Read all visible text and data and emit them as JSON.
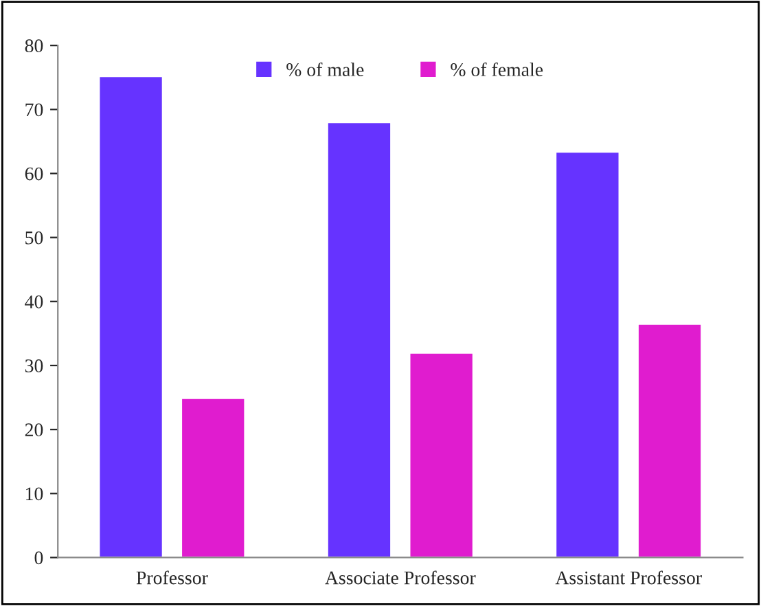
{
  "chart_data": {
    "type": "bar",
    "categories": [
      "Professor",
      "Associate Professor",
      "Assistant Professor"
    ],
    "series": [
      {
        "name": "% of male",
        "color": "#6633ff",
        "values": [
          75.2,
          68,
          63.4
        ]
      },
      {
        "name": "% of female",
        "color": "#e01ccf",
        "values": [
          24.9,
          32,
          36.5
        ]
      }
    ],
    "ylim": [
      0,
      80
    ],
    "yticks": [
      0,
      10,
      20,
      30,
      40,
      50,
      60,
      70,
      80
    ],
    "grid": false,
    "legend": "top"
  }
}
